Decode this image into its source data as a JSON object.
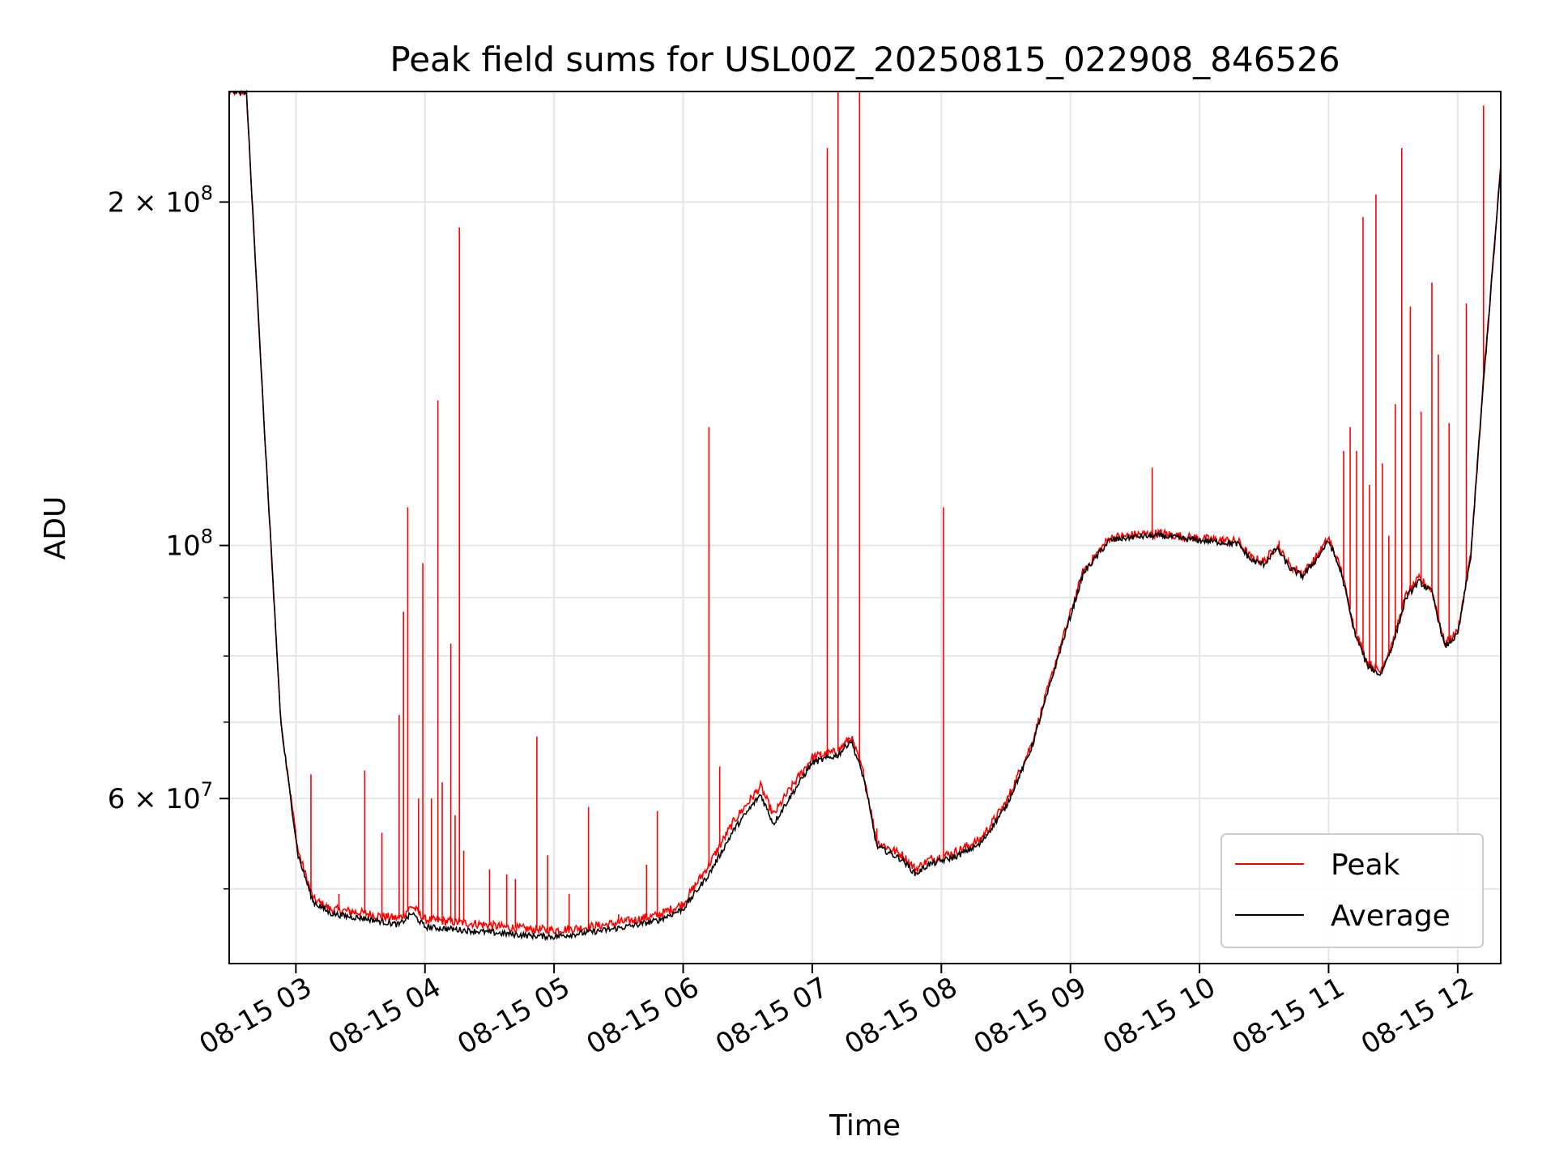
{
  "chart_data": {
    "type": "line",
    "title": "Peak field sums for USL00Z_20250815_022908_846526",
    "xlabel": "Time",
    "ylabel": "ADU",
    "yscale": "log",
    "xlim": [
      "2025-08-15 02:29",
      "2025-08-15 12:20"
    ],
    "ylim": [
      43000000,
      250000000
    ],
    "grid": true,
    "legend_placement": "lower-right",
    "x_ticks": [
      "08-15 03",
      "08-15 04",
      "08-15 05",
      "08-15 06",
      "08-15 07",
      "08-15 08",
      "08-15 09",
      "08-15 10",
      "08-15 11",
      "08-15 12"
    ],
    "x_tick_times": [
      "2025-08-15 03:00",
      "2025-08-15 04:00",
      "2025-08-15 05:00",
      "2025-08-15 06:00",
      "2025-08-15 07:00",
      "2025-08-15 08:00",
      "2025-08-15 09:00",
      "2025-08-15 10:00",
      "2025-08-15 11:00",
      "2025-08-15 12:00"
    ],
    "y_major_ticks": [
      {
        "value": 200000000,
        "mantissa": "2",
        "exponent": "8"
      },
      {
        "value": 100000000,
        "mantissa": "",
        "exponent": "8"
      },
      {
        "value": 60000000,
        "mantissa": "6",
        "exponent": "7"
      }
    ],
    "y_minor_gridlines": [
      50000000,
      70000000,
      80000000,
      90000000
    ],
    "series": [
      {
        "name": "Peak",
        "color": "#ff0000",
        "points": [
          [
            "2025-08-15 02:29",
            250000000
          ],
          [
            "2025-08-15 02:37",
            250000000
          ],
          [
            "2025-08-15 02:45",
            130000000
          ],
          [
            "2025-08-15 02:53",
            70000000
          ],
          [
            "2025-08-15 03:01",
            54000000
          ],
          [
            "2025-08-15 03:08",
            49000000
          ],
          [
            "2025-08-15 03:16",
            48000000
          ],
          [
            "2025-08-15 03:24",
            47800000
          ],
          [
            "2025-08-15 03:32",
            47600000
          ],
          [
            "2025-08-15 03:40",
            47300000
          ],
          [
            "2025-08-15 03:48",
            47100000
          ],
          [
            "2025-08-15 03:54",
            48300000
          ],
          [
            "2025-08-15 04:00",
            47000000
          ],
          [
            "2025-08-15 04:12",
            46800000
          ],
          [
            "2025-08-15 04:24",
            46600000
          ],
          [
            "2025-08-15 04:36",
            46300000
          ],
          [
            "2025-08-15 04:48",
            46100000
          ],
          [
            "2025-08-15 05:00",
            46000000
          ],
          [
            "2025-08-15 05:12",
            46200000
          ],
          [
            "2025-08-15 05:24",
            46500000
          ],
          [
            "2025-08-15 05:36",
            46900000
          ],
          [
            "2025-08-15 05:48",
            47400000
          ],
          [
            "2025-08-15 06:00",
            48500000
          ],
          [
            "2025-08-15 06:12",
            52500000
          ],
          [
            "2025-08-15 06:24",
            57500000
          ],
          [
            "2025-08-15 06:36",
            61500000
          ],
          [
            "2025-08-15 06:42",
            58000000
          ],
          [
            "2025-08-15 06:48",
            60500000
          ],
          [
            "2025-08-15 07:00",
            65200000
          ],
          [
            "2025-08-15 07:12",
            66000000
          ],
          [
            "2025-08-15 07:18",
            68000000
          ],
          [
            "2025-08-15 07:24",
            63000000
          ],
          [
            "2025-08-15 07:30",
            55000000
          ],
          [
            "2025-08-15 07:42",
            53500000
          ],
          [
            "2025-08-15 07:48",
            52000000
          ],
          [
            "2025-08-15 07:54",
            53000000
          ],
          [
            "2025-08-15 08:06",
            53800000
          ],
          [
            "2025-08-15 08:18",
            55200000
          ],
          [
            "2025-08-15 08:30",
            59500000
          ],
          [
            "2025-08-15 08:42",
            67000000
          ],
          [
            "2025-08-15 08:54",
            80000000
          ],
          [
            "2025-08-15 09:06",
            95000000
          ],
          [
            "2025-08-15 09:18",
            101500000
          ],
          [
            "2025-08-15 09:30",
            102200000
          ],
          [
            "2025-08-15 09:42",
            102500000
          ],
          [
            "2025-08-15 09:54",
            101700000
          ],
          [
            "2025-08-15 10:06",
            101200000
          ],
          [
            "2025-08-15 10:18",
            100800000
          ],
          [
            "2025-08-15 10:24",
            97500000
          ],
          [
            "2025-08-15 10:30",
            96800000
          ],
          [
            "2025-08-15 10:36",
            100000000
          ],
          [
            "2025-08-15 10:42",
            96000000
          ],
          [
            "2025-08-15 10:48",
            94500000
          ],
          [
            "2025-08-15 10:54",
            97500000
          ],
          [
            "2025-08-15 11:00",
            101500000
          ],
          [
            "2025-08-15 11:06",
            95000000
          ],
          [
            "2025-08-15 11:12",
            84500000
          ],
          [
            "2025-08-15 11:18",
            79000000
          ],
          [
            "2025-08-15 11:24",
            77500000
          ],
          [
            "2025-08-15 11:30",
            82500000
          ],
          [
            "2025-08-15 11:36",
            90500000
          ],
          [
            "2025-08-15 11:42",
            93500000
          ],
          [
            "2025-08-15 11:48",
            91500000
          ],
          [
            "2025-08-15 11:54",
            82000000
          ],
          [
            "2025-08-15 12:00",
            84000000
          ],
          [
            "2025-08-15 12:06",
            98000000
          ],
          [
            "2025-08-15 12:12",
            140000000
          ],
          [
            "2025-08-15 12:20",
            215000000
          ]
        ],
        "spikes": [
          [
            "2025-08-15 03:07",
            63000000
          ],
          [
            "2025-08-15 03:20",
            49500000
          ],
          [
            "2025-08-15 03:32",
            63500000
          ],
          [
            "2025-08-15 03:40",
            56000000
          ],
          [
            "2025-08-15 03:48",
            71000000
          ],
          [
            "2025-08-15 03:50",
            87500000
          ],
          [
            "2025-08-15 03:52",
            108000000
          ],
          [
            "2025-08-15 03:57",
            60000000
          ],
          [
            "2025-08-15 03:59",
            96500000
          ],
          [
            "2025-08-15 04:03",
            60000000
          ],
          [
            "2025-08-15 04:06",
            134000000
          ],
          [
            "2025-08-15 04:08",
            62000000
          ],
          [
            "2025-08-15 04:12",
            82000000
          ],
          [
            "2025-08-15 04:14",
            58000000
          ],
          [
            "2025-08-15 04:16",
            190000000
          ],
          [
            "2025-08-15 04:18",
            54000000
          ],
          [
            "2025-08-15 04:30",
            52000000
          ],
          [
            "2025-08-15 04:38",
            51500000
          ],
          [
            "2025-08-15 04:42",
            51000000
          ],
          [
            "2025-08-15 04:52",
            68000000
          ],
          [
            "2025-08-15 04:57",
            53500000
          ],
          [
            "2025-08-15 05:07",
            49500000
          ],
          [
            "2025-08-15 05:16",
            59000000
          ],
          [
            "2025-08-15 05:30",
            47500000
          ],
          [
            "2025-08-15 05:43",
            52500000
          ],
          [
            "2025-08-15 05:48",
            58500000
          ],
          [
            "2025-08-15 06:12",
            127000000
          ],
          [
            "2025-08-15 06:17",
            64000000
          ],
          [
            "2025-08-15 07:04",
            66000000
          ],
          [
            "2025-08-15 07:07",
            223000000
          ],
          [
            "2025-08-15 07:12",
            250000000
          ],
          [
            "2025-08-15 07:22",
            250000000
          ],
          [
            "2025-08-15 07:30",
            56500000
          ],
          [
            "2025-08-15 07:56",
            53000000
          ],
          [
            "2025-08-15 08:01",
            108000000
          ],
          [
            "2025-08-15 08:32",
            60000000
          ],
          [
            "2025-08-15 09:38",
            117000000
          ],
          [
            "2025-08-15 10:37",
            101000000
          ],
          [
            "2025-08-15 11:07",
            121000000
          ],
          [
            "2025-08-15 11:10",
            127000000
          ],
          [
            "2025-08-15 11:13",
            121000000
          ],
          [
            "2025-08-15 11:16",
            194000000
          ],
          [
            "2025-08-15 11:19",
            113000000
          ],
          [
            "2025-08-15 11:22",
            203000000
          ],
          [
            "2025-08-15 11:25",
            118000000
          ],
          [
            "2025-08-15 11:28",
            102000000
          ],
          [
            "2025-08-15 11:31",
            133000000
          ],
          [
            "2025-08-15 11:34",
            223000000
          ],
          [
            "2025-08-15 11:38",
            162000000
          ],
          [
            "2025-08-15 11:43",
            131000000
          ],
          [
            "2025-08-15 11:48",
            170000000
          ],
          [
            "2025-08-15 11:51",
            147000000
          ],
          [
            "2025-08-15 11:56",
            128000000
          ],
          [
            "2025-08-15 12:04",
            163000000
          ],
          [
            "2025-08-15 12:12",
            243000000
          ]
        ]
      },
      {
        "name": "Average",
        "color": "#000000",
        "points": [
          [
            "2025-08-15 02:29",
            250000000
          ],
          [
            "2025-08-15 02:37",
            250000000
          ],
          [
            "2025-08-15 02:45",
            130000000
          ],
          [
            "2025-08-15 02:53",
            70000000
          ],
          [
            "2025-08-15 03:01",
            53500000
          ],
          [
            "2025-08-15 03:08",
            48700000
          ],
          [
            "2025-08-15 03:16",
            47600000
          ],
          [
            "2025-08-15 03:24",
            47300000
          ],
          [
            "2025-08-15 03:32",
            47100000
          ],
          [
            "2025-08-15 03:40",
            46800000
          ],
          [
            "2025-08-15 03:48",
            46500000
          ],
          [
            "2025-08-15 03:54",
            47600000
          ],
          [
            "2025-08-15 04:00",
            46300000
          ],
          [
            "2025-08-15 04:12",
            46100000
          ],
          [
            "2025-08-15 04:24",
            45900000
          ],
          [
            "2025-08-15 04:36",
            45700000
          ],
          [
            "2025-08-15 04:48",
            45500000
          ],
          [
            "2025-08-15 05:00",
            45400000
          ],
          [
            "2025-08-15 05:12",
            45700000
          ],
          [
            "2025-08-15 05:24",
            46000000
          ],
          [
            "2025-08-15 05:36",
            46400000
          ],
          [
            "2025-08-15 05:48",
            46900000
          ],
          [
            "2025-08-15 06:00",
            48000000
          ],
          [
            "2025-08-15 06:12",
            51500000
          ],
          [
            "2025-08-15 06:24",
            56500000
          ],
          [
            "2025-08-15 06:36",
            60500000
          ],
          [
            "2025-08-15 06:42",
            57000000
          ],
          [
            "2025-08-15 06:48",
            59500000
          ],
          [
            "2025-08-15 07:00",
            64500000
          ],
          [
            "2025-08-15 07:12",
            65500000
          ],
          [
            "2025-08-15 07:18",
            67500000
          ],
          [
            "2025-08-15 07:24",
            62500000
          ],
          [
            "2025-08-15 07:30",
            54500000
          ],
          [
            "2025-08-15 07:42",
            53000000
          ],
          [
            "2025-08-15 07:48",
            51500000
          ],
          [
            "2025-08-15 07:54",
            52500000
          ],
          [
            "2025-08-15 08:06",
            53300000
          ],
          [
            "2025-08-15 08:18",
            54700000
          ],
          [
            "2025-08-15 08:30",
            59000000
          ],
          [
            "2025-08-15 08:42",
            66500000
          ],
          [
            "2025-08-15 08:54",
            79500000
          ],
          [
            "2025-08-15 09:06",
            94500000
          ],
          [
            "2025-08-15 09:18",
            101000000
          ],
          [
            "2025-08-15 09:30",
            101800000
          ],
          [
            "2025-08-15 09:42",
            102000000
          ],
          [
            "2025-08-15 09:54",
            101300000
          ],
          [
            "2025-08-15 10:06",
            100800000
          ],
          [
            "2025-08-15 10:18",
            100300000
          ],
          [
            "2025-08-15 10:24",
            97000000
          ],
          [
            "2025-08-15 10:30",
            96300000
          ],
          [
            "2025-08-15 10:36",
            99500000
          ],
          [
            "2025-08-15 10:42",
            95500000
          ],
          [
            "2025-08-15 10:48",
            94000000
          ],
          [
            "2025-08-15 10:54",
            97000000
          ],
          [
            "2025-08-15 11:00",
            101000000
          ],
          [
            "2025-08-15 11:06",
            94500000
          ],
          [
            "2025-08-15 11:12",
            84000000
          ],
          [
            "2025-08-15 11:18",
            78500000
          ],
          [
            "2025-08-15 11:24",
            77000000
          ],
          [
            "2025-08-15 11:30",
            82000000
          ],
          [
            "2025-08-15 11:36",
            90000000
          ],
          [
            "2025-08-15 11:42",
            93000000
          ],
          [
            "2025-08-15 11:48",
            91000000
          ],
          [
            "2025-08-15 11:54",
            81500000
          ],
          [
            "2025-08-15 12:00",
            83500000
          ],
          [
            "2025-08-15 12:06",
            97500000
          ],
          [
            "2025-08-15 12:12",
            139000000
          ],
          [
            "2025-08-15 12:20",
            214000000
          ]
        ]
      }
    ]
  }
}
